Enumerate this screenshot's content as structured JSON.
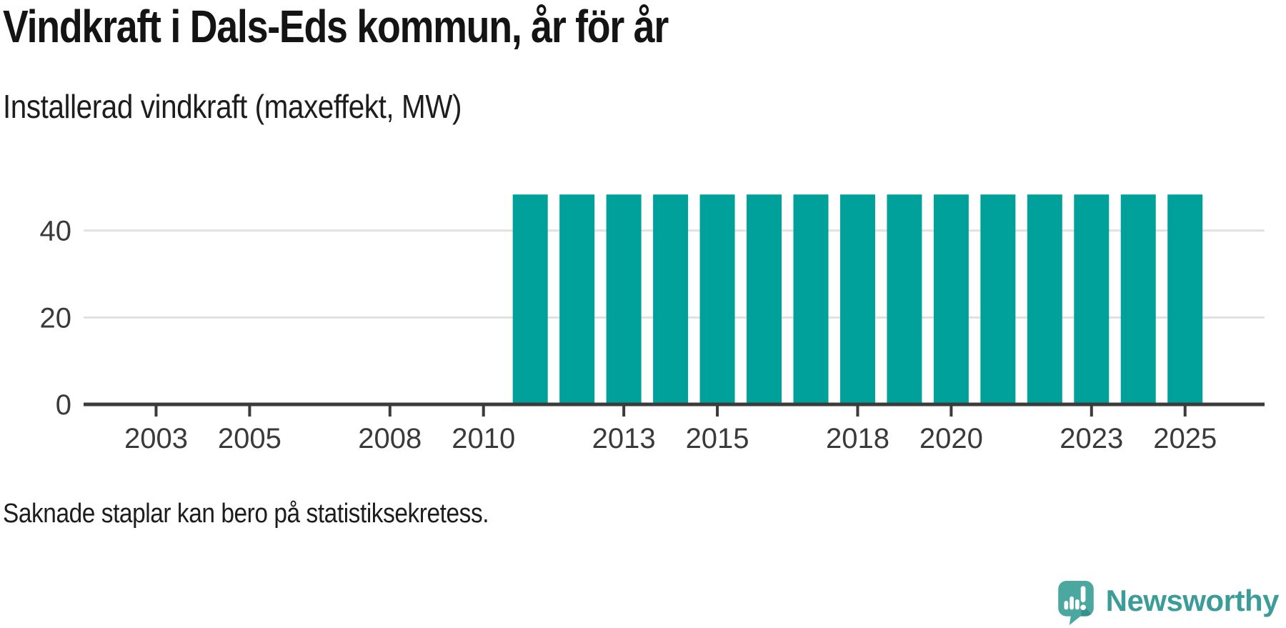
{
  "page": {
    "title": "Vindkraft i Dals-Eds kommun, år för år",
    "subtitle": "Installerad vindkraft (maxeffekt, MW)",
    "note": "Saknade staplar kan bero på statistiksekretess.",
    "brand": "Newsworthy"
  },
  "colors": {
    "bar": "#00a19b",
    "axis": "#3b3b3b",
    "grid": "#e1e1e1",
    "tick_text": "#3a3a3a",
    "title_text": "#141414",
    "body_text": "#1d1d1d",
    "brand_teal": "#4aa8a1",
    "brand_teal_dark": "#35918b",
    "brand_text": "#3c9d98"
  },
  "chart_data": {
    "type": "bar",
    "title": "Vindkraft i Dals-Eds kommun, år för år",
    "subtitle": "Installerad vindkraft (maxeffekt, MW)",
    "unit": "MW",
    "categories": [
      2002,
      2003,
      2004,
      2005,
      2006,
      2007,
      2008,
      2009,
      2010,
      2011,
      2012,
      2013,
      2014,
      2015,
      2016,
      2017,
      2018,
      2019,
      2020,
      2021,
      2022,
      2023,
      2024,
      2025
    ],
    "values": [
      null,
      null,
      null,
      null,
      null,
      null,
      null,
      null,
      null,
      48.3,
      48.3,
      48.3,
      48.3,
      48.3,
      48.3,
      48.3,
      48.3,
      48.3,
      48.3,
      48.3,
      48.3,
      48.3,
      48.3,
      48.3
    ],
    "x_ticks": [
      2003,
      2005,
      2008,
      2010,
      2013,
      2015,
      2018,
      2020,
      2023,
      2025
    ],
    "y_ticks": [
      0,
      20,
      40
    ],
    "xlim": [
      2001.45,
      2026.7
    ],
    "ylim": [
      0,
      61
    ],
    "grid": "horizontal-only",
    "legend": "none",
    "note": "Saknade staplar kan bero på statistiksekretess."
  }
}
